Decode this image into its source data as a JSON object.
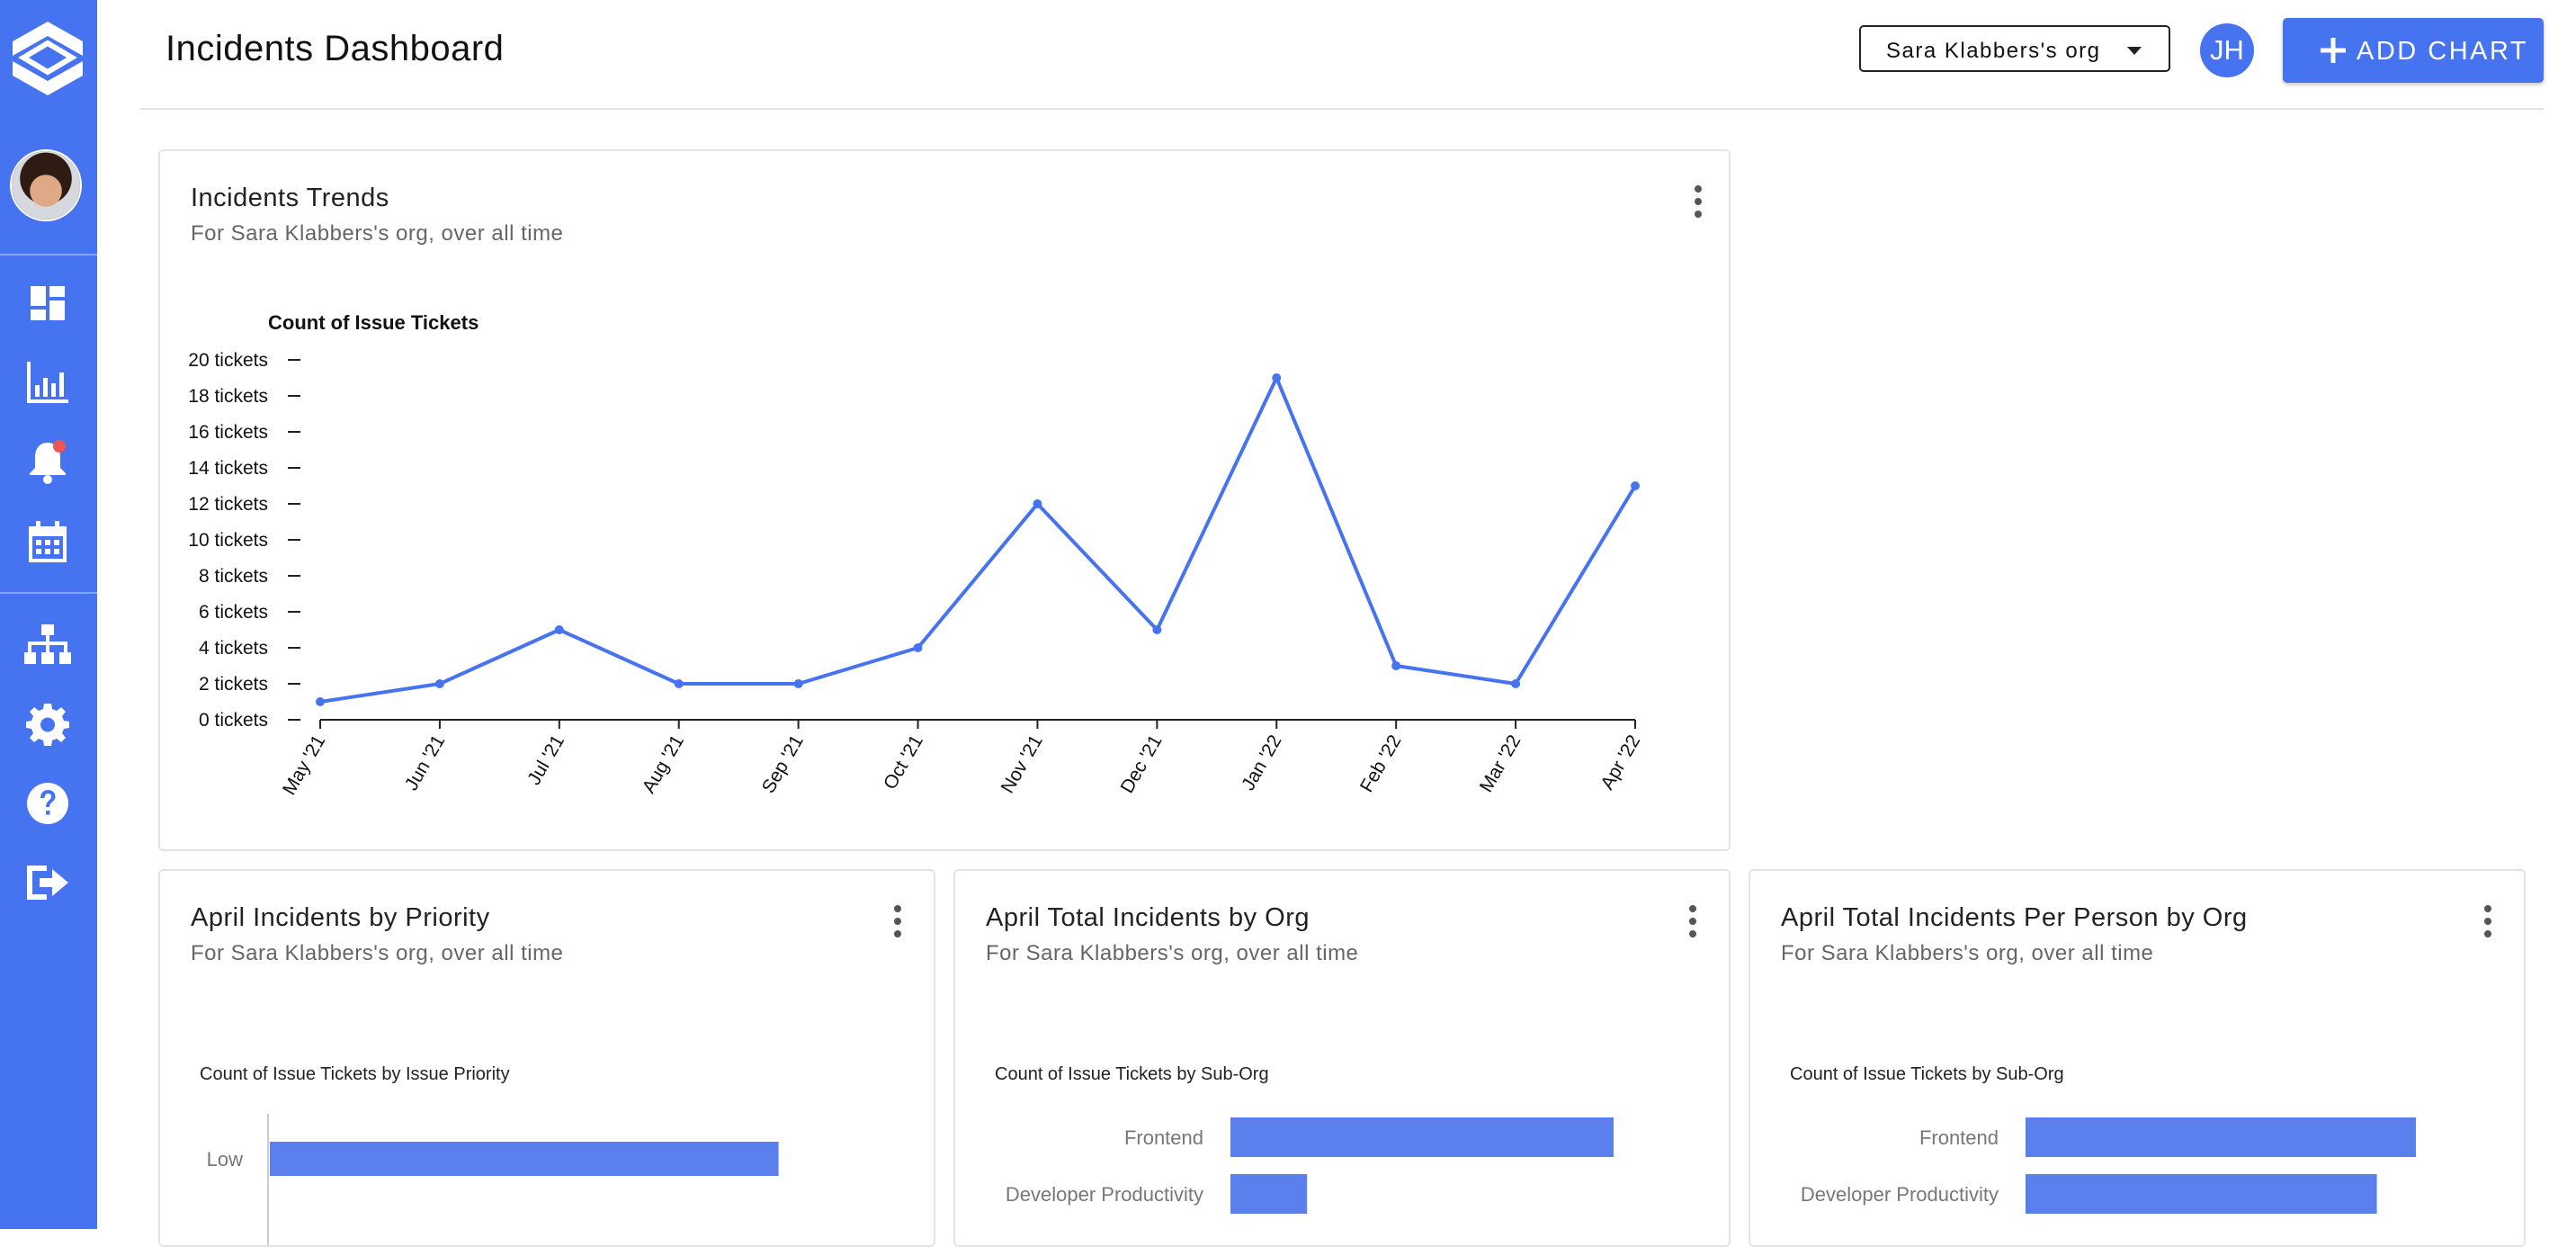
{
  "header": {
    "title": "Incidents Dashboard",
    "org_select": "Sara Klabbers's org",
    "user_initials": "JH",
    "add_chart_label": "ADD CHART"
  },
  "sidebar": {
    "items": [
      {
        "icon": "dashboard-icon"
      },
      {
        "icon": "bar-chart-icon"
      },
      {
        "icon": "notifications-bell-icon",
        "badge": true
      },
      {
        "icon": "calendar-icon"
      },
      {
        "icon": "org-chart-icon"
      },
      {
        "icon": "settings-gear-icon"
      },
      {
        "icon": "help-icon"
      },
      {
        "icon": "logout-icon"
      }
    ]
  },
  "colors": {
    "accent": "#4673f0",
    "bar": "#5b80ee",
    "notification": "#f05454"
  },
  "cards": {
    "trends": {
      "title": "Incidents Trends",
      "subtitle": "For Sara Klabbers's org, over all time"
    },
    "priority": {
      "title": "April Incidents by Priority",
      "subtitle": "For Sara Klabbers's org, over all time"
    },
    "by_org": {
      "title": "April Total Incidents by Org",
      "subtitle": "For Sara Klabbers's org, over all time"
    },
    "per_person": {
      "title": "April Total Incidents Per Person by Org",
      "subtitle": "For Sara Klabbers's org, over all time"
    }
  },
  "chart_data": [
    {
      "type": "line",
      "ylabel": "Count of Issue Tickets",
      "x": [
        "May '21",
        "Jun '21",
        "Jul '21",
        "Aug '21",
        "Sep '21",
        "Oct '21",
        "Nov '21",
        "Dec '21",
        "Jan '22",
        "Feb '22",
        "Mar '22",
        "Apr '22"
      ],
      "series": [
        {
          "values": [
            1,
            2,
            5,
            2,
            2,
            4,
            12,
            5,
            19,
            3,
            2,
            13
          ]
        }
      ],
      "yticks": [
        "0 tickets",
        "2 tickets",
        "4 tickets",
        "6 tickets",
        "8 tickets",
        "10 tickets",
        "12 tickets",
        "14 tickets",
        "16 tickets",
        "18 tickets",
        "20 tickets"
      ],
      "ylim": [
        0,
        20
      ]
    },
    {
      "type": "bar",
      "orientation": "horizontal",
      "title": "Count of Issue Tickets by Issue Priority",
      "categories": [
        "Low"
      ],
      "values": [
        14
      ]
    },
    {
      "type": "bar",
      "orientation": "horizontal",
      "title": "Count of Issue Tickets by Sub-Org",
      "categories": [
        "Frontend",
        "Developer Productivity"
      ],
      "values": [
        10,
        2
      ]
    },
    {
      "type": "bar",
      "orientation": "horizontal",
      "title": "Count of Issue Tickets by Sub-Org",
      "categories": [
        "Frontend",
        "Developer Productivity"
      ],
      "values": [
        10,
        9
      ]
    }
  ]
}
